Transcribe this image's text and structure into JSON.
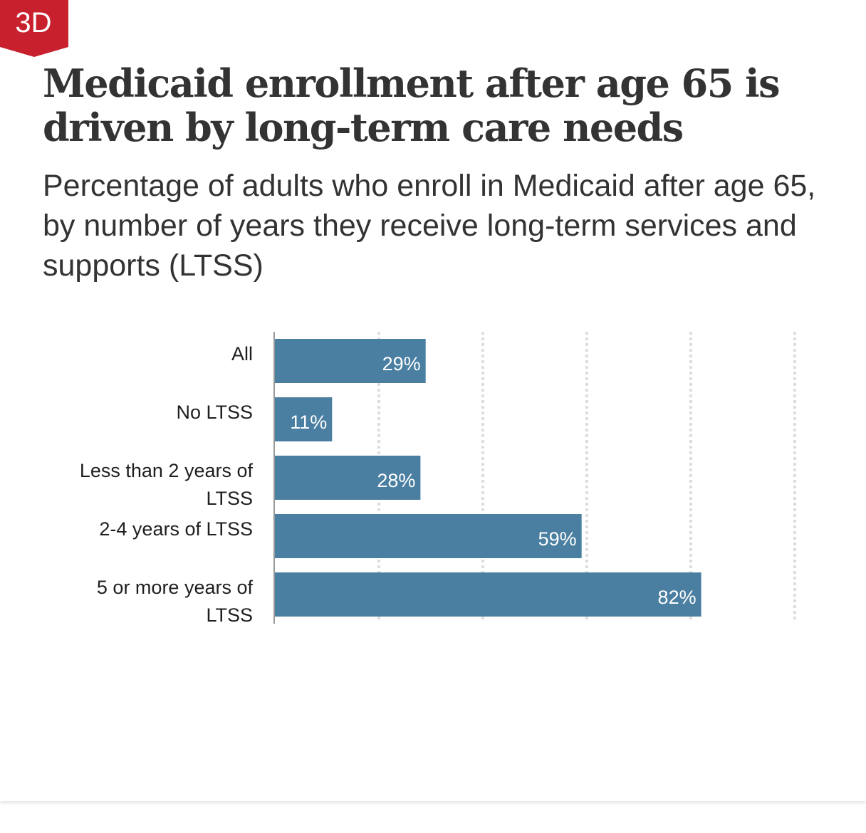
{
  "badge": {
    "label": "3D",
    "color": "#c9202e"
  },
  "header": {
    "title": "Medicaid enrollment after age 65 is driven by long-term care needs",
    "subtitle": "Percentage of adults who enroll in Medicaid after age 65, by number of years they receive long-term services and supports (LTSS)"
  },
  "colors": {
    "bar": "#4a7fa2",
    "grid": "#dddddd",
    "axis": "#999999"
  },
  "chart_data": {
    "type": "bar",
    "orientation": "horizontal",
    "categories": [
      [
        "All"
      ],
      [
        "No LTSS"
      ],
      [
        "Less than 2 years of",
        "LTSS"
      ],
      [
        "2-4 years of LTSS"
      ],
      [
        "5 or more years of",
        "LTSS"
      ]
    ],
    "values": [
      29,
      11,
      28,
      59,
      82
    ],
    "value_labels": [
      "29%",
      "11%",
      "28%",
      "59%",
      "82%"
    ],
    "xlim": [
      0,
      100
    ],
    "gridlines": [
      20,
      40,
      60,
      80,
      100
    ],
    "grid": true,
    "legend": "none"
  }
}
